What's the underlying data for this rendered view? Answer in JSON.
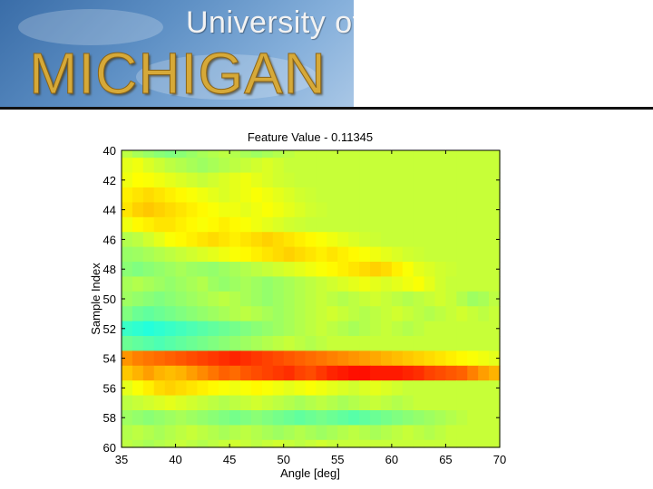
{
  "banner": {
    "line1": "University of",
    "line2": "MICHIGAN"
  },
  "chart_data": {
    "type": "heatmap",
    "title": "Feature Value - 0.11345",
    "xlabel": "Angle [deg]",
    "ylabel": "Sample Index",
    "xlim": [
      35,
      70
    ],
    "ylim": [
      40,
      60
    ],
    "y_reversed": true,
    "colormap": "jet",
    "color_range": [
      -1,
      1
    ],
    "x_ticks": [
      35,
      40,
      45,
      50,
      55,
      60,
      65,
      70
    ],
    "y_ticks": [
      40,
      42,
      44,
      46,
      48,
      50,
      52,
      54,
      56,
      58,
      60
    ],
    "x_start": 35,
    "x_step": 1,
    "y_start": 40,
    "y_step": 1,
    "values": [
      [
        0.12,
        0.08,
        0.05,
        0.02,
        0.0,
        0.02,
        0.05,
        0.08,
        0.1,
        0.12,
        0.1,
        0.08,
        0.06,
        0.08,
        0.1,
        0.12,
        0.14,
        0.14,
        0.14,
        0.14,
        0.14,
        0.14,
        0.14,
        0.14,
        0.14,
        0.14,
        0.14,
        0.14,
        0.14,
        0.14,
        0.14,
        0.14,
        0.14,
        0.14,
        0.14
      ],
      [
        0.2,
        0.22,
        0.18,
        0.15,
        0.12,
        0.1,
        0.08,
        0.06,
        0.08,
        0.1,
        0.12,
        0.14,
        0.16,
        0.18,
        0.16,
        0.14,
        0.14,
        0.14,
        0.14,
        0.14,
        0.14,
        0.14,
        0.14,
        0.14,
        0.14,
        0.14,
        0.14,
        0.14,
        0.14,
        0.14,
        0.14,
        0.14,
        0.14,
        0.14,
        0.14
      ],
      [
        0.22,
        0.25,
        0.24,
        0.22,
        0.2,
        0.18,
        0.16,
        0.14,
        0.16,
        0.18,
        0.2,
        0.22,
        0.2,
        0.18,
        0.16,
        0.15,
        0.14,
        0.14,
        0.14,
        0.14,
        0.14,
        0.14,
        0.14,
        0.14,
        0.14,
        0.14,
        0.14,
        0.14,
        0.14,
        0.14,
        0.14,
        0.14,
        0.14,
        0.14,
        0.14
      ],
      [
        0.28,
        0.3,
        0.32,
        0.3,
        0.28,
        0.26,
        0.24,
        0.22,
        0.2,
        0.18,
        0.2,
        0.22,
        0.24,
        0.22,
        0.2,
        0.18,
        0.16,
        0.15,
        0.14,
        0.14,
        0.14,
        0.14,
        0.14,
        0.14,
        0.14,
        0.14,
        0.14,
        0.14,
        0.14,
        0.14,
        0.14,
        0.14,
        0.14,
        0.14,
        0.14
      ],
      [
        0.3,
        0.34,
        0.36,
        0.34,
        0.32,
        0.3,
        0.28,
        0.26,
        0.24,
        0.22,
        0.22,
        0.2,
        0.22,
        0.24,
        0.22,
        0.2,
        0.18,
        0.16,
        0.15,
        0.14,
        0.14,
        0.14,
        0.14,
        0.14,
        0.14,
        0.14,
        0.14,
        0.14,
        0.14,
        0.14,
        0.14,
        0.14,
        0.14,
        0.14,
        0.14
      ],
      [
        0.22,
        0.26,
        0.28,
        0.3,
        0.3,
        0.28,
        0.26,
        0.24,
        0.26,
        0.28,
        0.26,
        0.24,
        0.22,
        0.2,
        0.18,
        0.16,
        0.15,
        0.14,
        0.14,
        0.14,
        0.14,
        0.14,
        0.14,
        0.14,
        0.14,
        0.14,
        0.14,
        0.14,
        0.14,
        0.14,
        0.14,
        0.14,
        0.14,
        0.14,
        0.14
      ],
      [
        0.1,
        0.12,
        0.16,
        0.2,
        0.24,
        0.26,
        0.28,
        0.3,
        0.32,
        0.3,
        0.28,
        0.3,
        0.32,
        0.34,
        0.32,
        0.3,
        0.28,
        0.26,
        0.24,
        0.22,
        0.2,
        0.18,
        0.16,
        0.15,
        0.14,
        0.14,
        0.14,
        0.14,
        0.14,
        0.14,
        0.14,
        0.14,
        0.14,
        0.14,
        0.14
      ],
      [
        0.05,
        0.06,
        0.08,
        0.1,
        0.12,
        0.14,
        0.16,
        0.18,
        0.2,
        0.22,
        0.24,
        0.26,
        0.28,
        0.3,
        0.32,
        0.34,
        0.32,
        0.3,
        0.28,
        0.3,
        0.28,
        0.26,
        0.24,
        0.22,
        0.2,
        0.18,
        0.16,
        0.15,
        0.14,
        0.14,
        0.14,
        0.14,
        0.14,
        0.14,
        0.14
      ],
      [
        0.02,
        0.0,
        0.02,
        0.04,
        0.06,
        0.08,
        0.06,
        0.05,
        0.04,
        0.06,
        0.08,
        0.1,
        0.12,
        0.14,
        0.16,
        0.18,
        0.2,
        0.22,
        0.24,
        0.26,
        0.28,
        0.3,
        0.32,
        0.34,
        0.32,
        0.28,
        0.24,
        0.2,
        0.18,
        0.16,
        0.15,
        0.14,
        0.14,
        0.14,
        0.14
      ],
      [
        0.08,
        0.1,
        0.08,
        0.06,
        0.04,
        0.06,
        0.08,
        0.1,
        0.06,
        0.04,
        0.06,
        0.08,
        0.06,
        0.04,
        0.06,
        0.08,
        0.1,
        0.12,
        0.14,
        0.16,
        0.18,
        0.2,
        0.22,
        0.2,
        0.18,
        0.2,
        0.22,
        0.24,
        0.2,
        0.16,
        0.14,
        0.14,
        0.14,
        0.14,
        0.14
      ],
      [
        0.06,
        0.04,
        0.02,
        0.0,
        0.02,
        0.04,
        0.06,
        0.08,
        0.1,
        0.12,
        0.1,
        0.08,
        0.06,
        0.04,
        0.06,
        0.08,
        0.1,
        0.12,
        0.14,
        0.12,
        0.1,
        0.12,
        0.14,
        0.16,
        0.14,
        0.12,
        0.1,
        0.12,
        0.14,
        0.16,
        0.14,
        0.1,
        0.06,
        0.08,
        0.12
      ],
      [
        0.0,
        -0.04,
        -0.06,
        -0.04,
        -0.02,
        0.0,
        0.02,
        0.04,
        0.06,
        0.08,
        0.1,
        0.12,
        0.1,
        0.08,
        0.06,
        0.08,
        0.1,
        0.12,
        0.14,
        0.16,
        0.14,
        0.12,
        0.1,
        0.12,
        0.14,
        0.16,
        0.14,
        0.12,
        0.1,
        0.12,
        0.14,
        0.16,
        0.14,
        0.12,
        0.14
      ],
      [
        -0.14,
        -0.16,
        -0.18,
        -0.16,
        -0.14,
        -0.12,
        -0.1,
        -0.08,
        -0.06,
        -0.04,
        -0.02,
        0.0,
        0.02,
        0.04,
        0.06,
        0.08,
        0.1,
        0.12,
        0.14,
        0.12,
        0.1,
        0.08,
        0.1,
        0.12,
        0.14,
        0.12,
        0.1,
        0.12,
        0.14,
        0.14,
        0.14,
        0.14,
        0.14,
        0.14,
        0.14
      ],
      [
        -0.04,
        -0.06,
        -0.08,
        -0.1,
        -0.08,
        -0.06,
        -0.04,
        -0.02,
        0.0,
        0.02,
        0.04,
        0.06,
        0.08,
        0.1,
        0.12,
        0.14,
        0.12,
        0.1,
        0.12,
        0.14,
        0.14,
        0.14,
        0.14,
        0.14,
        0.14,
        0.14,
        0.14,
        0.14,
        0.14,
        0.14,
        0.14,
        0.14,
        0.14,
        0.14,
        0.14
      ],
      [
        0.46,
        0.5,
        0.52,
        0.54,
        0.56,
        0.58,
        0.6,
        0.62,
        0.64,
        0.66,
        0.68,
        0.66,
        0.64,
        0.62,
        0.6,
        0.58,
        0.56,
        0.54,
        0.52,
        0.5,
        0.48,
        0.46,
        0.44,
        0.42,
        0.4,
        0.38,
        0.36,
        0.34,
        0.32,
        0.3,
        0.28,
        0.26,
        0.24,
        0.22,
        0.2
      ],
      [
        0.36,
        0.4,
        0.44,
        0.4,
        0.38,
        0.4,
        0.44,
        0.48,
        0.52,
        0.56,
        0.54,
        0.58,
        0.6,
        0.62,
        0.64,
        0.66,
        0.62,
        0.6,
        0.64,
        0.68,
        0.7,
        0.72,
        0.72,
        0.7,
        0.7,
        0.7,
        0.68,
        0.66,
        0.62,
        0.6,
        0.58,
        0.56,
        0.5,
        0.44,
        0.4
      ],
      [
        0.2,
        0.24,
        0.28,
        0.32,
        0.34,
        0.32,
        0.3,
        0.28,
        0.26,
        0.24,
        0.22,
        0.24,
        0.26,
        0.24,
        0.22,
        0.2,
        0.22,
        0.24,
        0.22,
        0.2,
        0.18,
        0.16,
        0.18,
        0.2,
        0.18,
        0.16,
        0.14,
        0.14,
        0.14,
        0.14,
        0.14,
        0.14,
        0.14,
        0.14,
        0.14
      ],
      [
        0.12,
        0.14,
        0.16,
        0.18,
        0.2,
        0.18,
        0.16,
        0.14,
        0.12,
        0.1,
        0.12,
        0.14,
        0.16,
        0.14,
        0.12,
        0.1,
        0.08,
        0.1,
        0.12,
        0.1,
        0.08,
        0.1,
        0.12,
        0.14,
        0.12,
        0.1,
        0.12,
        0.14,
        0.14,
        0.14,
        0.14,
        0.14,
        0.14,
        0.14,
        0.14
      ],
      [
        0.06,
        0.04,
        0.02,
        0.04,
        0.06,
        0.08,
        0.06,
        0.04,
        0.02,
        0.0,
        -0.02,
        0.0,
        0.02,
        0.0,
        -0.02,
        -0.04,
        -0.06,
        -0.04,
        -0.02,
        -0.04,
        -0.06,
        -0.08,
        -0.06,
        -0.04,
        -0.02,
        0.0,
        0.02,
        0.04,
        0.06,
        0.08,
        0.1,
        0.12,
        0.14,
        0.14,
        0.14
      ],
      [
        0.1,
        0.12,
        0.1,
        0.08,
        0.1,
        0.12,
        0.14,
        0.12,
        0.1,
        0.08,
        0.1,
        0.12,
        0.1,
        0.08,
        0.06,
        0.08,
        0.1,
        0.08,
        0.06,
        0.08,
        0.1,
        0.12,
        0.1,
        0.08,
        0.1,
        0.12,
        0.14,
        0.12,
        0.1,
        0.12,
        0.14,
        0.14,
        0.14,
        0.14,
        0.14
      ],
      [
        0.12,
        0.1,
        0.08,
        0.1,
        0.12,
        0.14,
        0.12,
        0.1,
        0.12,
        0.14,
        0.16,
        0.14,
        0.12,
        0.14,
        0.16,
        0.14,
        0.12,
        0.14,
        0.16,
        0.14,
        0.14,
        0.14,
        0.14,
        0.14,
        0.14,
        0.14,
        0.14,
        0.14,
        0.14,
        0.14,
        0.14,
        0.14,
        0.14,
        0.14,
        0.14
      ]
    ]
  }
}
